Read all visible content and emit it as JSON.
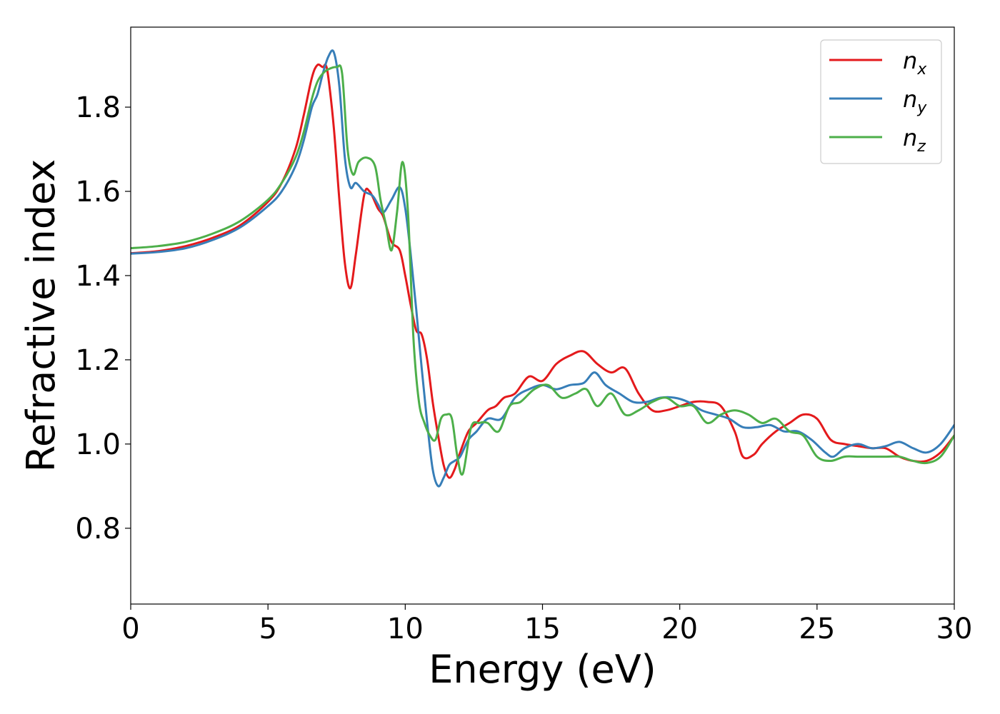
{
  "chart_data": {
    "type": "line",
    "title": "",
    "xlabel": "Energy (eV)",
    "ylabel": "Refractive index",
    "xlim": [
      0,
      30
    ],
    "ylim": [
      0.62,
      1.99
    ],
    "xticks": [
      0,
      5,
      10,
      15,
      20,
      25,
      30
    ],
    "xtick_labels": [
      "0",
      "5",
      "10",
      "15",
      "20",
      "25",
      "30"
    ],
    "yticks": [
      0.8,
      1.0,
      1.2,
      1.4,
      1.6,
      1.8
    ],
    "ytick_labels": [
      "0.8",
      "1.0",
      "1.2",
      "1.4",
      "1.6",
      "1.8"
    ],
    "grid": false,
    "legend_position": "top-right",
    "series": [
      {
        "name": "n_x",
        "label_main": "n",
        "label_sub": "x",
        "color": "#e41a1c",
        "x": [
          0,
          1,
          2,
          3,
          4,
          5,
          5.5,
          6,
          6.3,
          6.6,
          6.8,
          7.0,
          7.1,
          7.2,
          7.4,
          7.6,
          7.8,
          8.0,
          8.2,
          8.5,
          8.7,
          9.0,
          9.2,
          9.5,
          9.8,
          10.0,
          10.2,
          10.4,
          10.6,
          10.8,
          11.0,
          11.2,
          11.4,
          11.6,
          11.8,
          12.0,
          12.3,
          12.6,
          13.0,
          13.3,
          13.6,
          14.0,
          14.5,
          15.0,
          15.5,
          16.0,
          16.5,
          17.0,
          17.5,
          18.0,
          18.5,
          19.0,
          19.5,
          20.0,
          20.5,
          21.0,
          21.5,
          22.0,
          22.3,
          22.7,
          23.0,
          23.5,
          24.0,
          24.5,
          25.0,
          25.5,
          26.0,
          26.5,
          27.0,
          27.5,
          28.0,
          28.5,
          29.0,
          29.5,
          30.0
        ],
        "y": [
          1.453,
          1.458,
          1.47,
          1.49,
          1.52,
          1.575,
          1.62,
          1.7,
          1.78,
          1.87,
          1.9,
          1.895,
          1.9,
          1.87,
          1.75,
          1.58,
          1.43,
          1.37,
          1.45,
          1.59,
          1.6,
          1.56,
          1.54,
          1.48,
          1.46,
          1.4,
          1.33,
          1.27,
          1.26,
          1.2,
          1.1,
          1.02,
          0.95,
          0.92,
          0.94,
          0.98,
          1.03,
          1.05,
          1.08,
          1.09,
          1.11,
          1.12,
          1.16,
          1.15,
          1.19,
          1.21,
          1.22,
          1.19,
          1.17,
          1.18,
          1.12,
          1.08,
          1.08,
          1.09,
          1.1,
          1.1,
          1.09,
          1.03,
          0.97,
          0.975,
          1.0,
          1.03,
          1.05,
          1.07,
          1.06,
          1.01,
          1.0,
          0.995,
          0.99,
          0.99,
          0.97,
          0.96,
          0.96,
          0.98,
          1.02
        ]
      },
      {
        "name": "n_y",
        "label_main": "n",
        "label_sub": "y",
        "color": "#377eb8",
        "x": [
          0,
          1,
          2,
          3,
          4,
          5,
          5.5,
          6,
          6.3,
          6.6,
          6.8,
          7.0,
          7.2,
          7.4,
          7.6,
          7.8,
          8.0,
          8.2,
          8.5,
          8.8,
          9.0,
          9.2,
          9.5,
          9.8,
          10.0,
          10.2,
          10.4,
          10.6,
          10.8,
          11.0,
          11.2,
          11.4,
          11.6,
          11.8,
          12.0,
          12.3,
          12.6,
          13.0,
          13.5,
          14.0,
          14.5,
          15.0,
          15.5,
          16.0,
          16.5,
          16.9,
          17.3,
          17.8,
          18.3,
          18.8,
          19.3,
          19.8,
          20.3,
          20.8,
          21.3,
          21.8,
          22.3,
          22.8,
          23.3,
          23.8,
          24.3,
          24.8,
          25.3,
          25.6,
          26.0,
          26.5,
          27.0,
          27.5,
          28.0,
          28.5,
          29.0,
          29.5,
          30.0
        ],
        "y": [
          1.452,
          1.456,
          1.465,
          1.485,
          1.515,
          1.565,
          1.6,
          1.66,
          1.72,
          1.8,
          1.83,
          1.88,
          1.92,
          1.93,
          1.85,
          1.68,
          1.61,
          1.62,
          1.6,
          1.59,
          1.57,
          1.55,
          1.58,
          1.61,
          1.56,
          1.45,
          1.32,
          1.18,
          1.05,
          0.94,
          0.9,
          0.92,
          0.95,
          0.96,
          0.97,
          1.01,
          1.03,
          1.06,
          1.06,
          1.11,
          1.13,
          1.14,
          1.13,
          1.14,
          1.145,
          1.17,
          1.14,
          1.12,
          1.1,
          1.1,
          1.11,
          1.11,
          1.1,
          1.08,
          1.07,
          1.06,
          1.04,
          1.04,
          1.045,
          1.03,
          1.03,
          1.01,
          0.98,
          0.97,
          0.99,
          1.0,
          0.99,
          0.995,
          1.005,
          0.99,
          0.98,
          1.0,
          1.045
        ]
      },
      {
        "name": "n_z",
        "label_main": "n",
        "label_sub": "z",
        "color": "#4daf4a",
        "x": [
          0,
          1,
          2,
          3,
          4,
          5,
          5.5,
          6,
          6.3,
          6.6,
          6.8,
          7.0,
          7.2,
          7.5,
          7.7,
          7.9,
          8.1,
          8.3,
          8.6,
          8.9,
          9.1,
          9.3,
          9.5,
          9.7,
          9.9,
          10.1,
          10.3,
          10.5,
          10.7,
          10.9,
          11.1,
          11.3,
          11.5,
          11.7,
          11.9,
          12.1,
          12.4,
          12.7,
          13.0,
          13.4,
          13.8,
          14.2,
          14.7,
          15.2,
          15.7,
          16.2,
          16.6,
          17.0,
          17.5,
          18.0,
          18.5,
          19.0,
          19.5,
          20.0,
          20.5,
          21.0,
          21.5,
          22.0,
          22.5,
          23.0,
          23.5,
          24.0,
          24.5,
          25.0,
          25.5,
          26.0,
          26.5,
          27.0,
          27.5,
          28.0,
          28.5,
          29.0,
          29.5,
          30.0
        ],
        "y": [
          1.465,
          1.47,
          1.48,
          1.5,
          1.53,
          1.58,
          1.62,
          1.68,
          1.74,
          1.82,
          1.86,
          1.88,
          1.89,
          1.895,
          1.88,
          1.7,
          1.64,
          1.67,
          1.68,
          1.66,
          1.58,
          1.52,
          1.46,
          1.55,
          1.67,
          1.55,
          1.25,
          1.1,
          1.05,
          1.02,
          1.01,
          1.06,
          1.07,
          1.06,
          0.97,
          0.93,
          1.04,
          1.05,
          1.05,
          1.03,
          1.09,
          1.1,
          1.13,
          1.14,
          1.11,
          1.12,
          1.13,
          1.09,
          1.12,
          1.07,
          1.08,
          1.1,
          1.11,
          1.09,
          1.09,
          1.05,
          1.07,
          1.08,
          1.07,
          1.05,
          1.06,
          1.03,
          1.02,
          0.97,
          0.96,
          0.97,
          0.97,
          0.97,
          0.97,
          0.97,
          0.96,
          0.955,
          0.97,
          1.02
        ]
      }
    ]
  }
}
